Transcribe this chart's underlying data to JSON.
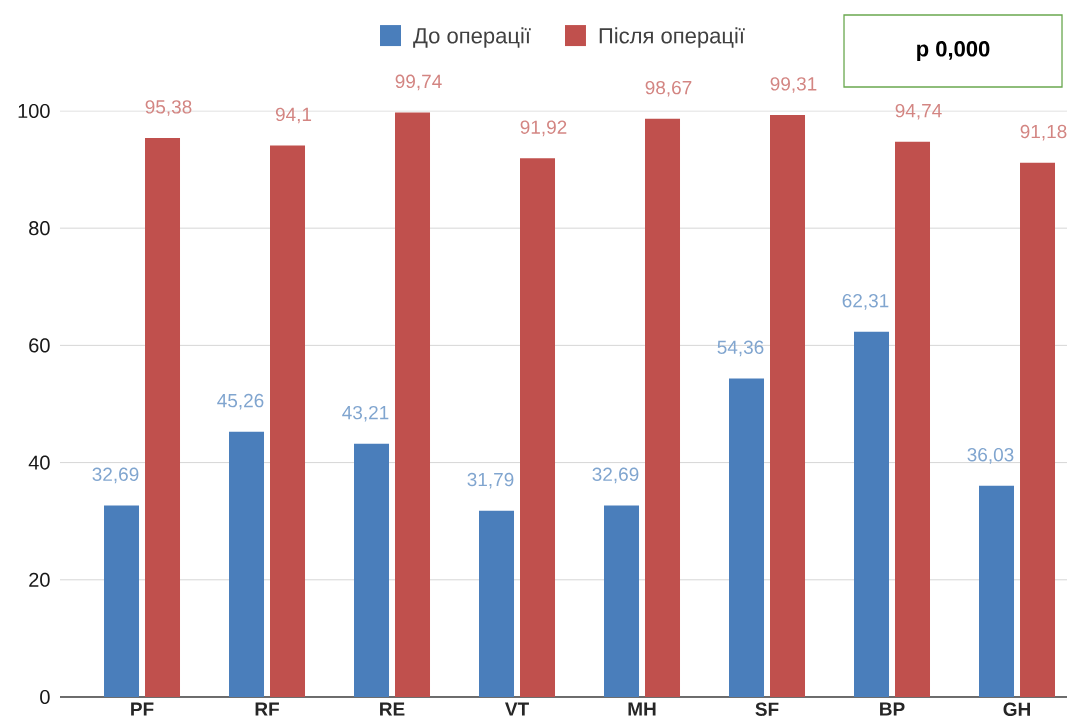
{
  "chart_data": {
    "type": "bar",
    "categories": [
      "PF",
      "RF",
      "RE",
      "VT",
      "MH",
      "SF",
      "BP",
      "GH"
    ],
    "series": [
      {
        "name": "До операції",
        "color": "#4a7ebb",
        "values": [
          32.69,
          45.26,
          43.21,
          31.79,
          32.69,
          54.36,
          62.31,
          36.03
        ],
        "value_labels": [
          "32,69",
          "45,26",
          "43,21",
          "31,79",
          "32,69",
          "54,36",
          "62,31",
          "36,03"
        ]
      },
      {
        "name": "Після операції",
        "color": "#c0504d",
        "values": [
          95.38,
          94.1,
          99.74,
          91.92,
          98.67,
          99.31,
          94.74,
          91.18
        ],
        "value_labels": [
          "95,38",
          "94,1",
          "99,74",
          "91,92",
          "98,67",
          "99,31",
          "94,74",
          "91,18"
        ]
      }
    ],
    "ylim": [
      0,
      100
    ],
    "yticks": [
      0,
      20,
      40,
      60,
      80,
      100
    ],
    "grid": "y",
    "legend": "top",
    "annotations": [
      "p 0,000"
    ]
  }
}
